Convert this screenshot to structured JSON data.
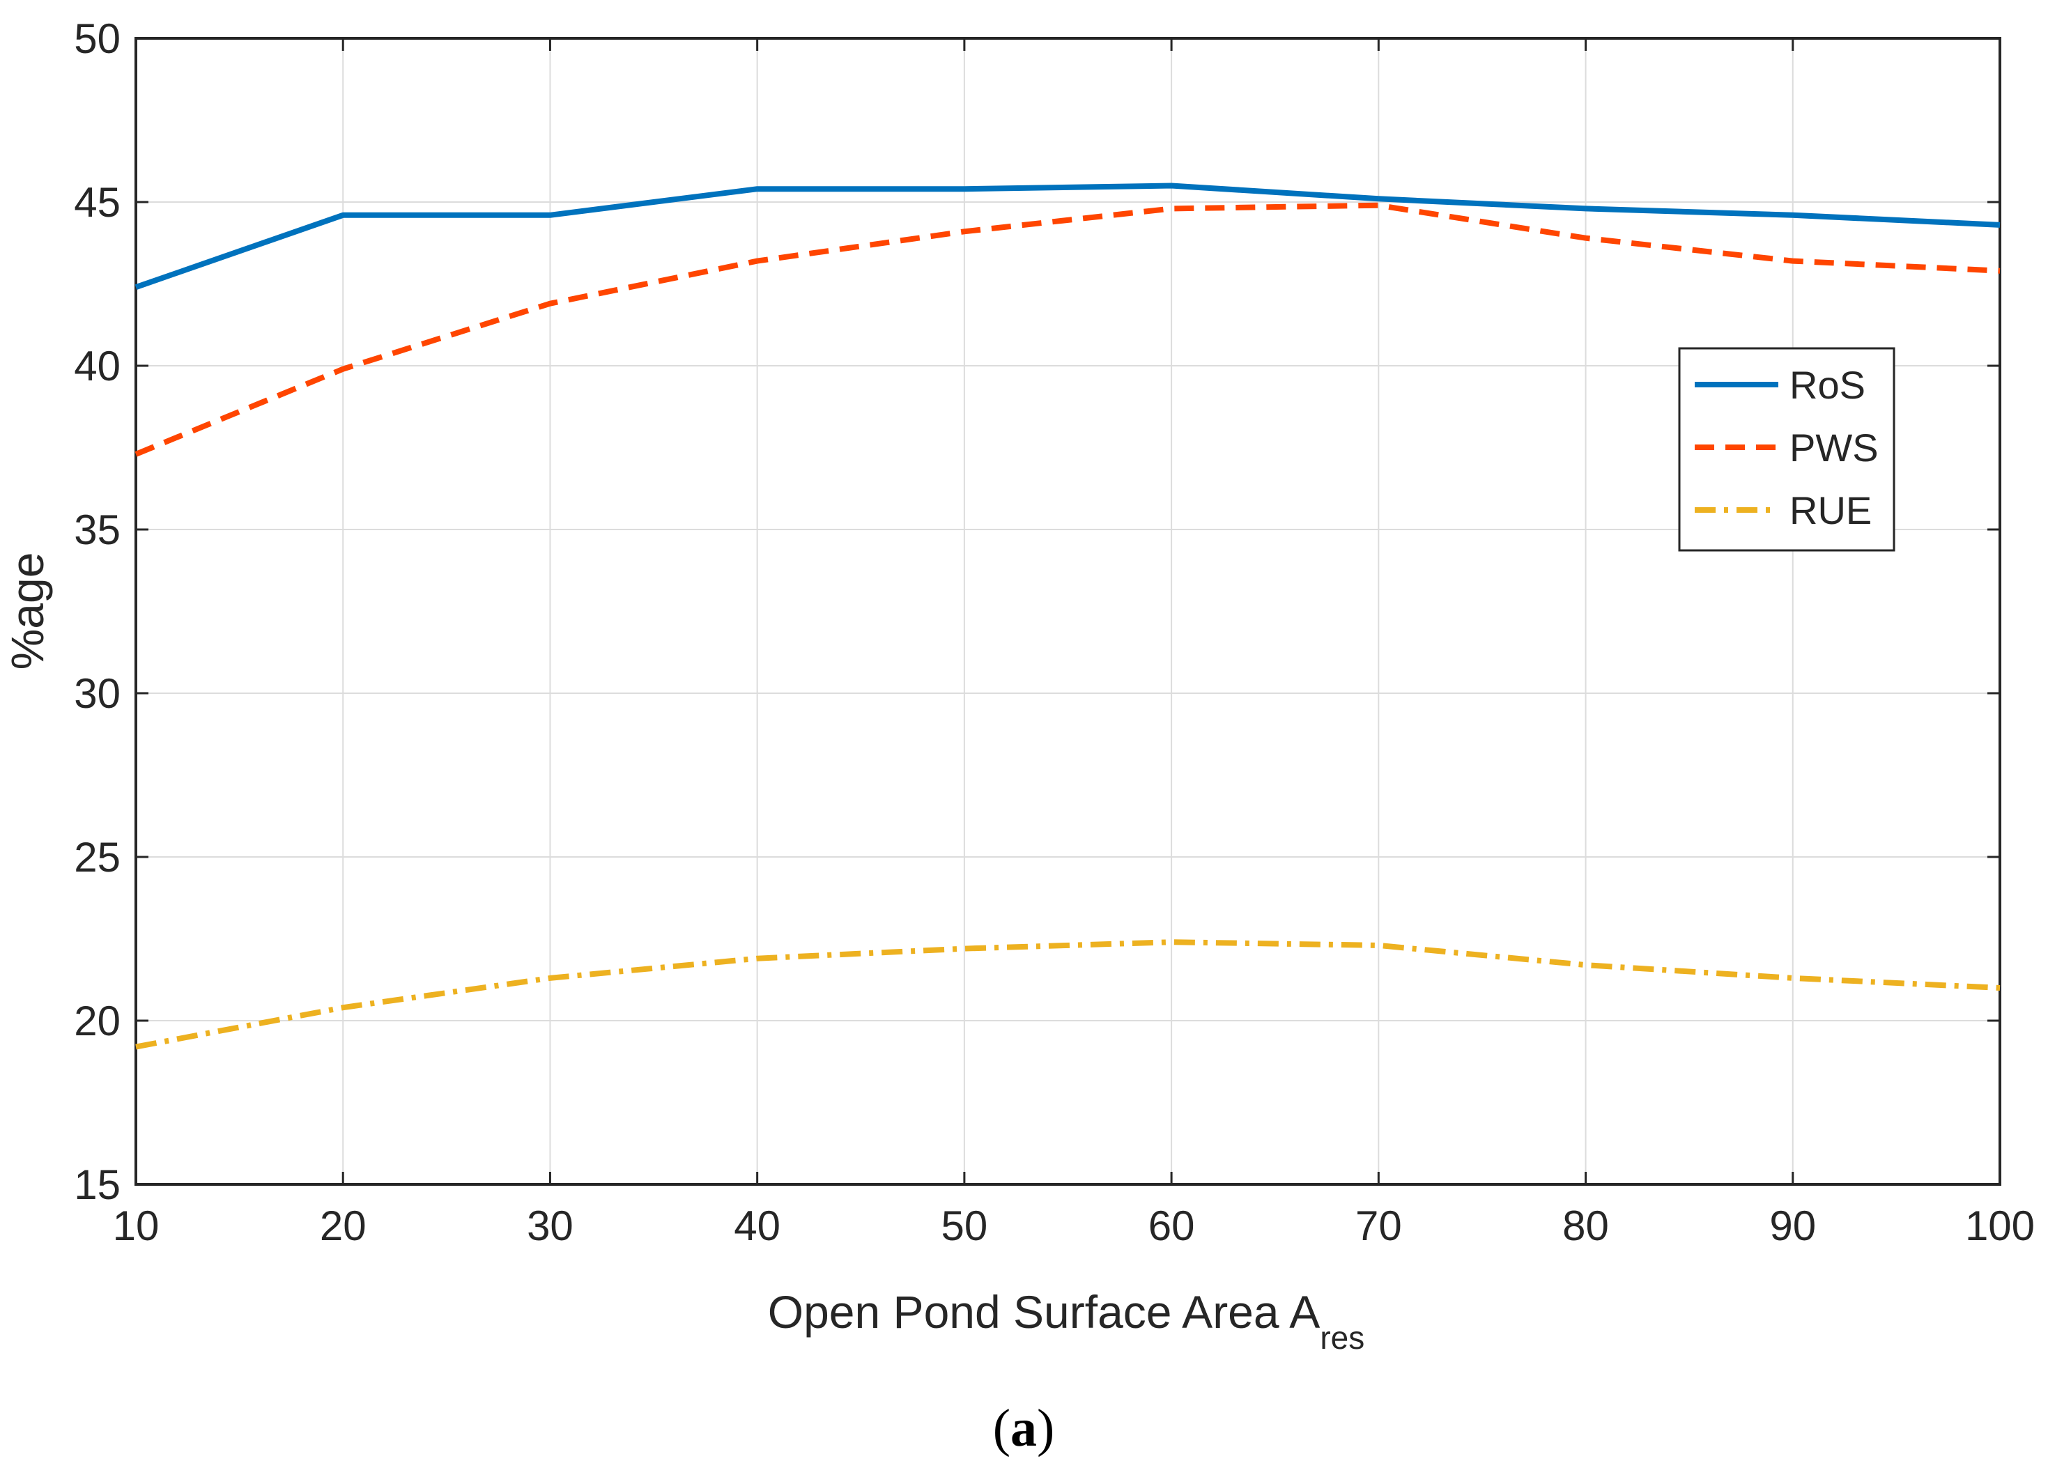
{
  "chart_data": {
    "type": "line",
    "x": [
      10,
      20,
      30,
      40,
      50,
      60,
      70,
      80,
      90,
      100
    ],
    "xlim": [
      10,
      100
    ],
    "ylim": [
      15,
      50
    ],
    "xticks": [
      10,
      20,
      30,
      40,
      50,
      60,
      70,
      80,
      90,
      100
    ],
    "yticks": [
      15,
      20,
      25,
      30,
      35,
      40,
      45,
      50
    ],
    "xlabel": "Open Pond Surface Area A",
    "xlabel_subscript": "res",
    "ylabel": "%age",
    "grid": true,
    "legend_position": "upper-right",
    "series": [
      {
        "name": "RoS",
        "color": "#0072BD",
        "line_style": "solid",
        "values": [
          42.4,
          44.6,
          44.6,
          45.4,
          45.4,
          45.5,
          45.1,
          44.8,
          44.6,
          44.3
        ]
      },
      {
        "name": "PWS",
        "color": "#FF4500",
        "line_style": "dashed",
        "values": [
          37.3,
          39.9,
          41.9,
          43.2,
          44.1,
          44.8,
          44.9,
          43.9,
          43.2,
          42.9
        ]
      },
      {
        "name": "RUE",
        "color": "#EDB120",
        "line_style": "dash-dot",
        "values": [
          19.2,
          20.4,
          21.3,
          21.9,
          22.2,
          22.4,
          22.3,
          21.7,
          21.3,
          21.0
        ]
      }
    ]
  },
  "panel_label": {
    "open": "(",
    "letter": "a",
    "close": ")"
  }
}
